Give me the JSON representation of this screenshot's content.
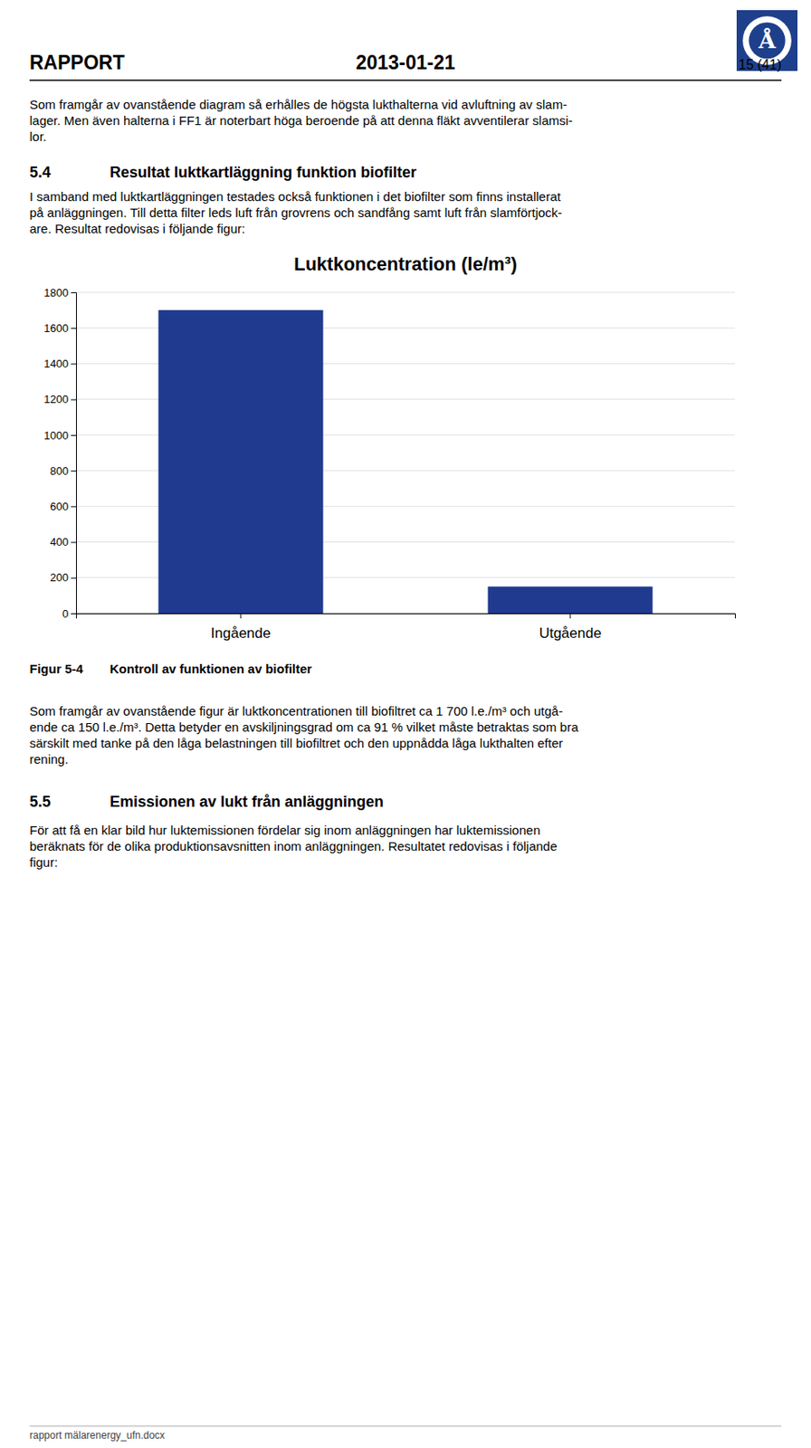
{
  "logo_text": "Å",
  "page_header_left": "RAPPORT",
  "page_header_center": "2013-01-21",
  "page_header_right": "15 (41)",
  "intro_text_1": [
    "Som framgår av ovanstående diagram så erhålles de högsta lukthalterna vid avluftning av slam-",
    "lager. Men även halterna i FF1 är noterbart höga beroende på att denna fläkt avventilerar slamsi-",
    "lor."
  ],
  "section_number": "5.4",
  "section_title": "Resultat luktkartläggning funktion biofilter",
  "body_text_1": [
    "I samband med luktkartläggningen testades också funktionen i det biofilter som finns installerat",
    "på anläggningen. Till detta filter leds luft från grovrens och sandfång samt luft från slamförtjock-",
    "are. Resultat redovisas i följande figur:"
  ],
  "chart_data": {
    "type": "bar",
    "title": "Luktkoncentration (le/m³)",
    "categories": [
      "Ingående",
      "Utgående"
    ],
    "values": [
      1700,
      150
    ],
    "color": "#1F3A8F",
    "ylim": [
      0,
      1800
    ],
    "yticks": [
      0,
      200,
      400,
      600,
      800,
      1000,
      1200,
      1400,
      1600,
      1800
    ],
    "grid": true
  },
  "figure_label": "Figur 5-4",
  "figure_caption": "Kontroll av funktionen av biofilter",
  "body_text_2": [
    "Som framgår av ovanstående figur är luktkoncentrationen till biofiltret ca 1 700 l.e./m³ och utgå-",
    "ende ca 150 l.e./m³. Detta betyder en avskiljningsgrad om ca 91 % vilket måste betraktas som bra",
    "särskilt med tanke på den låga belastningen till biofiltret och den uppnådda låga lukthalten efter",
    "rening."
  ],
  "section2_number": "5.5",
  "section2_title": "Emissionen av lukt från anläggningen",
  "body_text_3": [
    "För att få en klar bild hur luktemissionen fördelar sig inom anläggningen har luktemissionen",
    "beräknats för de olika produktionsavsnitten inom anläggningen. Resultatet redovisas i följande",
    "figur:"
  ],
  "footer_text": "rapport mälarenergy_ufn.docx"
}
